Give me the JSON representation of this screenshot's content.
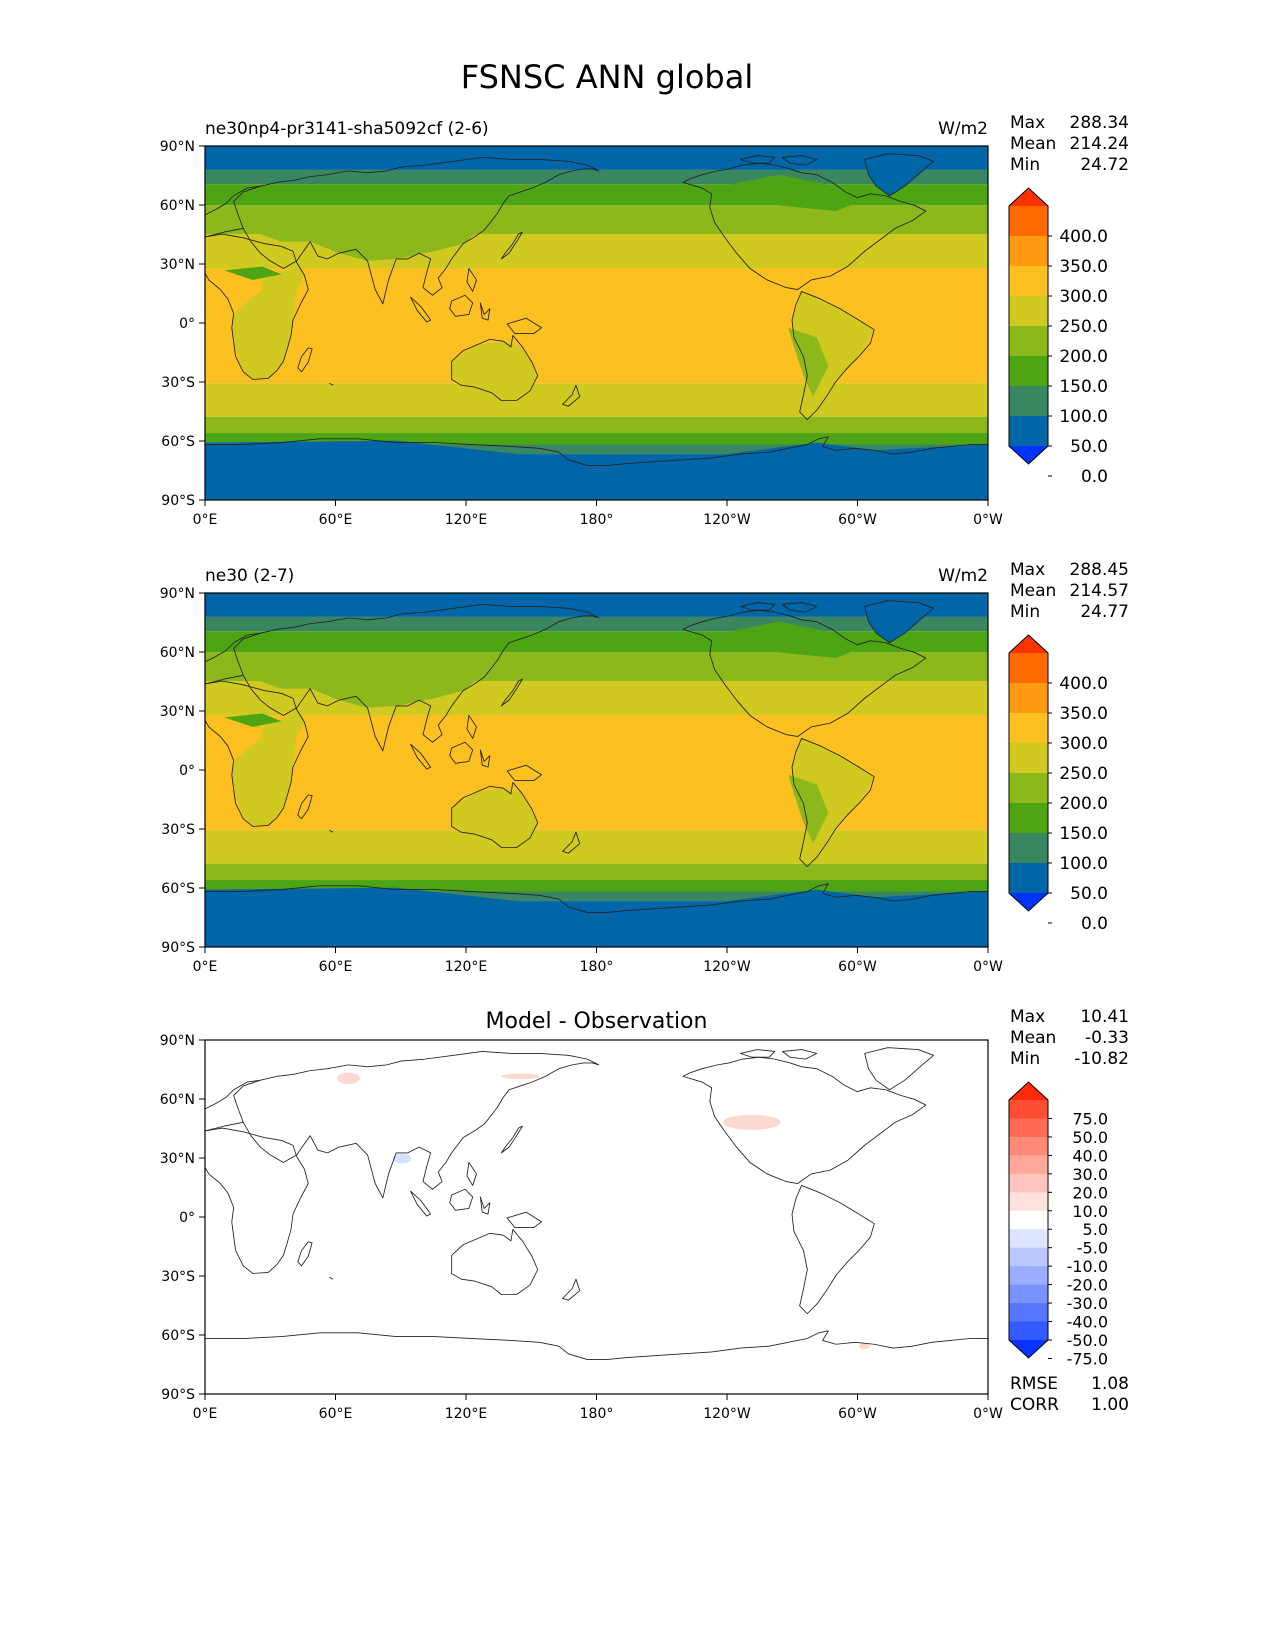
{
  "figure": {
    "title": "FSNSC ANN global"
  },
  "axes": {
    "lat_labels": [
      "90°N",
      "60°N",
      "30°N",
      "0°",
      "30°S",
      "60°S",
      "90°S"
    ],
    "lon_labels": [
      "0°E",
      "60°E",
      "120°E",
      "180°",
      "120°W",
      "60°W",
      "0°W"
    ]
  },
  "stat_labels": {
    "max": "Max",
    "mean": "Mean",
    "min": "Min",
    "rmse": "RMSE",
    "corr": "CORR"
  },
  "panels": [
    {
      "id": "test",
      "left_title": "ne30np4-pr3141-sha5092cf (2-6)",
      "center_title": "",
      "right_title": "W/m2",
      "stats": {
        "max": "288.34",
        "mean": "214.24",
        "min": "24.72"
      },
      "colorbar_key": "main"
    },
    {
      "id": "ref",
      "left_title": "ne30 (2-7)",
      "center_title": "",
      "right_title": "W/m2",
      "stats": {
        "max": "288.45",
        "mean": "214.57",
        "min": "24.77"
      },
      "colorbar_key": "main"
    },
    {
      "id": "diff",
      "left_title": "",
      "center_title": "Model - Observation",
      "right_title": "",
      "stats": {
        "max": "10.41",
        "mean": "-0.33",
        "min": "-10.82"
      },
      "metrics": {
        "rmse": "1.08",
        "corr": "1.00"
      },
      "colorbar_key": "diff"
    }
  ],
  "colorbars": {
    "main": {
      "labels": [
        "400.0",
        "350.0",
        "300.0",
        "250.0",
        "200.0",
        "150.0",
        "100.0",
        "50.0",
        "0.0"
      ],
      "colors": [
        "#ff3300",
        "#ff6a00",
        "#ff9a12",
        "#fcc020",
        "#d0c920",
        "#8db81c",
        "#4ea514",
        "#3a8660",
        "#0066a8",
        "#0033ff"
      ]
    },
    "diff": {
      "labels": [
        "75.0",
        "50.0",
        "40.0",
        "30.0",
        "20.0",
        "10.0",
        "5.0",
        "-5.0",
        "-10.0",
        "-20.0",
        "-30.0",
        "-40.0",
        "-50.0",
        "-75.0"
      ],
      "colors": [
        "#ff2a0a",
        "#ff4d33",
        "#ff6b55",
        "#ff8a78",
        "#ffa79a",
        "#ffc4bb",
        "#ffe2dd",
        "#ffffff",
        "#dde4ff",
        "#bbc8ff",
        "#9aadff",
        "#7892ff",
        "#5676ff",
        "#345bff",
        "#0a33ff"
      ]
    }
  },
  "map_colors": {
    "c0": "#0066a8",
    "c50": "#3a8660",
    "c100": "#4ea514",
    "c150": "#8db81c",
    "c200": "#d0c920",
    "c250": "#fcc020",
    "diff_pos": "#fbd9d2",
    "diff_neg": "#d6e0ff",
    "coast": "#222222"
  }
}
